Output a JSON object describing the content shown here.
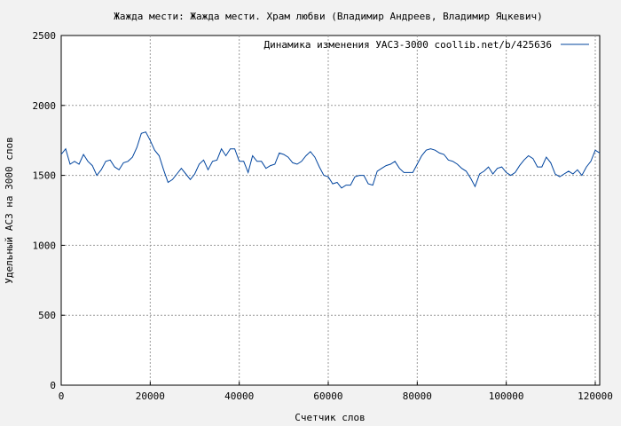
{
  "chart_data": {
    "type": "line",
    "title": "Жажда мести: Жажда мести. Храм любви (Владимир Андреев, Владимир Яцкевич)",
    "xlabel": "Счетчик слов",
    "ylabel": "Удельный АСЗ на 3000 слов",
    "xlim": [
      0,
      121000
    ],
    "ylim": [
      0,
      2500
    ],
    "x_ticks": [
      0,
      20000,
      40000,
      60000,
      80000,
      100000,
      120000
    ],
    "y_ticks": [
      0,
      500,
      1000,
      1500,
      2000,
      2500
    ],
    "grid": true,
    "legend_position": "top-right",
    "series": [
      {
        "name": "Динамика изменения УАСЗ-3000  coollib.net/b/425636",
        "color": "#00449e",
        "points": [
          [
            0,
            1650
          ],
          [
            1000,
            1690
          ],
          [
            2000,
            1580
          ],
          [
            3000,
            1600
          ],
          [
            4000,
            1580
          ],
          [
            5000,
            1650
          ],
          [
            6000,
            1600
          ],
          [
            7000,
            1570
          ],
          [
            8000,
            1500
          ],
          [
            9000,
            1540
          ],
          [
            10000,
            1600
          ],
          [
            11000,
            1610
          ],
          [
            12000,
            1560
          ],
          [
            13000,
            1540
          ],
          [
            14000,
            1590
          ],
          [
            15000,
            1600
          ],
          [
            16000,
            1630
          ],
          [
            17000,
            1700
          ],
          [
            18000,
            1800
          ],
          [
            19000,
            1810
          ],
          [
            20000,
            1750
          ],
          [
            21000,
            1680
          ],
          [
            22000,
            1640
          ],
          [
            23000,
            1540
          ],
          [
            24000,
            1450
          ],
          [
            25000,
            1470
          ],
          [
            26000,
            1510
          ],
          [
            27000,
            1550
          ],
          [
            28000,
            1510
          ],
          [
            29000,
            1470
          ],
          [
            30000,
            1510
          ],
          [
            31000,
            1580
          ],
          [
            32000,
            1610
          ],
          [
            33000,
            1540
          ],
          [
            34000,
            1600
          ],
          [
            35000,
            1610
          ],
          [
            36000,
            1690
          ],
          [
            37000,
            1640
          ],
          [
            38000,
            1690
          ],
          [
            39000,
            1690
          ],
          [
            40000,
            1600
          ],
          [
            41000,
            1600
          ],
          [
            42000,
            1520
          ],
          [
            43000,
            1640
          ],
          [
            44000,
            1600
          ],
          [
            45000,
            1600
          ],
          [
            46000,
            1550
          ],
          [
            47000,
            1570
          ],
          [
            48000,
            1580
          ],
          [
            49000,
            1660
          ],
          [
            50000,
            1650
          ],
          [
            51000,
            1630
          ],
          [
            52000,
            1590
          ],
          [
            53000,
            1580
          ],
          [
            54000,
            1600
          ],
          [
            55000,
            1640
          ],
          [
            56000,
            1670
          ],
          [
            57000,
            1630
          ],
          [
            58000,
            1560
          ],
          [
            59000,
            1500
          ],
          [
            60000,
            1490
          ],
          [
            61000,
            1440
          ],
          [
            62000,
            1450
          ],
          [
            63000,
            1410
          ],
          [
            64000,
            1430
          ],
          [
            65000,
            1430
          ],
          [
            66000,
            1490
          ],
          [
            67000,
            1500
          ],
          [
            68000,
            1500
          ],
          [
            69000,
            1440
          ],
          [
            70000,
            1430
          ],
          [
            71000,
            1530
          ],
          [
            72000,
            1550
          ],
          [
            73000,
            1570
          ],
          [
            74000,
            1580
          ],
          [
            75000,
            1600
          ],
          [
            76000,
            1550
          ],
          [
            77000,
            1520
          ],
          [
            78000,
            1520
          ],
          [
            79000,
            1520
          ],
          [
            80000,
            1580
          ],
          [
            81000,
            1640
          ],
          [
            82000,
            1680
          ],
          [
            83000,
            1690
          ],
          [
            84000,
            1680
          ],
          [
            85000,
            1660
          ],
          [
            86000,
            1650
          ],
          [
            87000,
            1610
          ],
          [
            88000,
            1600
          ],
          [
            89000,
            1580
          ],
          [
            90000,
            1550
          ],
          [
            91000,
            1530
          ],
          [
            92000,
            1480
          ],
          [
            93000,
            1420
          ],
          [
            94000,
            1510
          ],
          [
            95000,
            1530
          ],
          [
            96000,
            1560
          ],
          [
            97000,
            1510
          ],
          [
            98000,
            1550
          ],
          [
            99000,
            1560
          ],
          [
            100000,
            1520
          ],
          [
            101000,
            1500
          ],
          [
            102000,
            1520
          ],
          [
            103000,
            1570
          ],
          [
            104000,
            1610
          ],
          [
            105000,
            1640
          ],
          [
            106000,
            1620
          ],
          [
            107000,
            1560
          ],
          [
            108000,
            1560
          ],
          [
            109000,
            1630
          ],
          [
            110000,
            1590
          ],
          [
            111000,
            1510
          ],
          [
            112000,
            1490
          ],
          [
            113000,
            1510
          ],
          [
            114000,
            1530
          ],
          [
            115000,
            1510
          ],
          [
            116000,
            1540
          ],
          [
            117000,
            1500
          ],
          [
            118000,
            1560
          ],
          [
            119000,
            1600
          ],
          [
            120000,
            1680
          ],
          [
            121000,
            1660
          ]
        ]
      }
    ]
  }
}
